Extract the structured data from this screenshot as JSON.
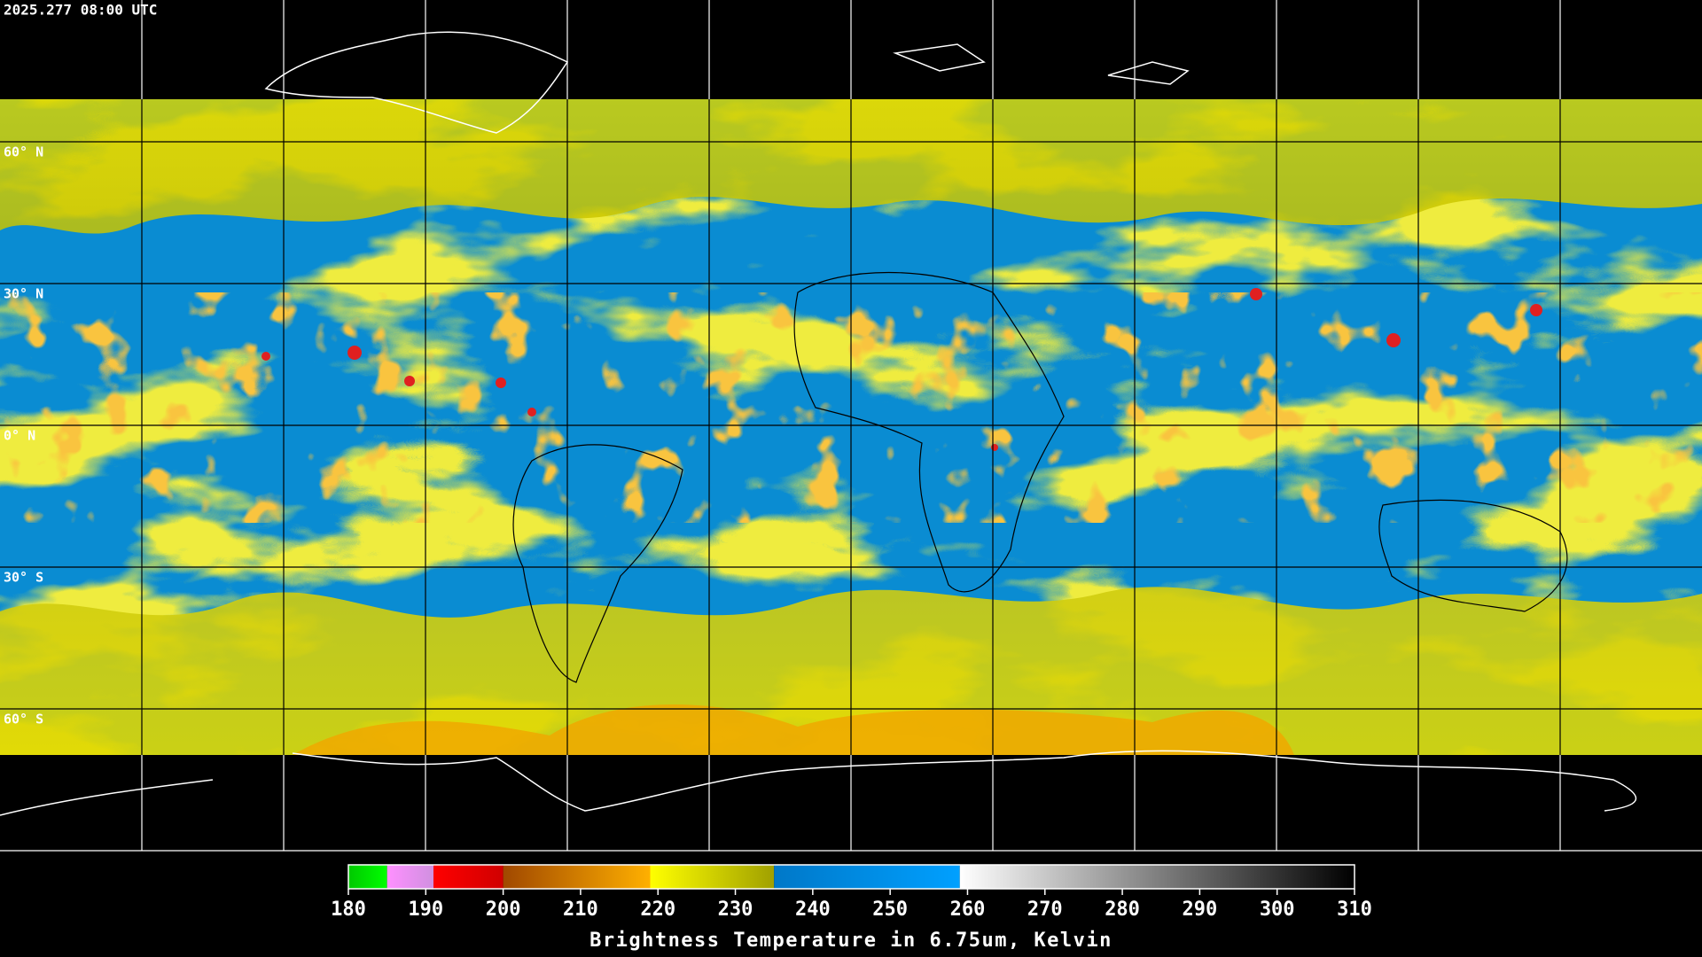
{
  "timestamp": "2025.277 08:00 UTC",
  "map": {
    "lat_labels": [
      {
        "value": 60,
        "label": "60° N"
      },
      {
        "value": 30,
        "label": "30° N"
      },
      {
        "value": 0,
        "label": "0° N"
      },
      {
        "value": -30,
        "label": "30° S"
      },
      {
        "value": -60,
        "label": "60° S"
      }
    ]
  },
  "colorbar": {
    "title": "Brightness Temperature in 6.75um, Kelvin",
    "lim": [
      180,
      310
    ],
    "ticks": [
      180,
      190,
      200,
      210,
      220,
      230,
      240,
      250,
      260,
      270,
      280,
      290,
      300,
      310
    ],
    "segments": [
      {
        "range": [
          180,
          185
        ],
        "colors": [
          "#00c800",
          "#00ff00"
        ]
      },
      {
        "range": [
          185,
          191
        ],
        "colors": [
          "#ff90ff",
          "#d090e0"
        ]
      },
      {
        "range": [
          191,
          200
        ],
        "colors": [
          "#ff0000",
          "#d00000"
        ]
      },
      {
        "range": [
          200,
          219
        ],
        "colors": [
          "#a04800",
          "#ffb000"
        ]
      },
      {
        "range": [
          219,
          235
        ],
        "colors": [
          "#ffff00",
          "#a0a000"
        ]
      },
      {
        "range": [
          235,
          259
        ],
        "colors": [
          "#0078c8",
          "#00a0ff"
        ]
      },
      {
        "range": [
          259,
          310
        ],
        "colors": [
          "#ffffff",
          "#000000"
        ]
      }
    ]
  }
}
